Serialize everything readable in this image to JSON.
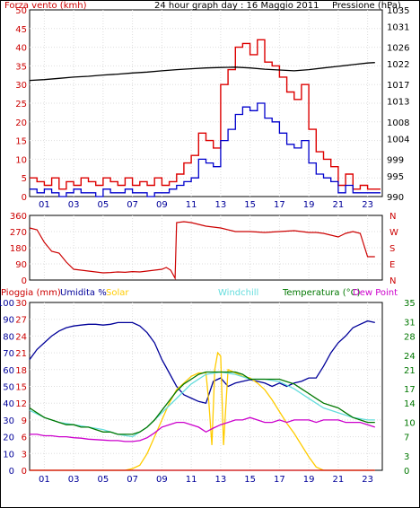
{
  "chart_data": [
    {
      "type": "line",
      "panel": "wind-pressure",
      "title": "24 hour graph day : 16 Maggio 2011",
      "left_label": "Forza vento (kmh)",
      "right_label": "Pressione (hPa)",
      "x_tick_labels": [
        "01",
        "03",
        "05",
        "07",
        "09",
        "11",
        "13",
        "15",
        "17",
        "19",
        "21",
        "23"
      ],
      "x_range": [
        0,
        24
      ],
      "left_axis": {
        "min": 0,
        "max": 50,
        "ticks": [
          0,
          5,
          10,
          15,
          20,
          25,
          30,
          35,
          40,
          45,
          50
        ]
      },
      "right_axis": {
        "min": 990,
        "max": 1035,
        "ticks": [
          990,
          995,
          999,
          1004,
          1008,
          1013,
          1017,
          1022,
          1026,
          1031,
          1035
        ]
      },
      "series": [
        {
          "name": "",
          "color": "#dd0000",
          "axis": "left",
          "x": [
            0,
            0.5,
            1,
            1.5,
            2,
            2.5,
            3,
            3.5,
            4,
            4.5,
            5,
            5.5,
            6,
            6.5,
            7,
            7.5,
            8,
            8.5,
            9,
            9.5,
            10,
            10.5,
            11,
            11.5,
            12,
            12.5,
            13,
            13.5,
            14,
            14.5,
            15,
            15.5,
            16,
            16.5,
            17,
            17.5,
            18,
            18.5,
            19,
            19.5,
            20,
            20.5,
            21,
            21.5,
            22,
            22.5,
            23,
            23.5
          ],
          "values": [
            5,
            4,
            3,
            5,
            2,
            4,
            3,
            5,
            4,
            3,
            5,
            4,
            3,
            5,
            3,
            4,
            3,
            5,
            3,
            4,
            6,
            9,
            11,
            17,
            15,
            13,
            30,
            34,
            40,
            41,
            38,
            42,
            36,
            35,
            32,
            28,
            26,
            30,
            18,
            12,
            10,
            8,
            3,
            6,
            2,
            3,
            2,
            2
          ]
        },
        {
          "name": "",
          "color": "#0000cc",
          "axis": "left",
          "x": [
            0,
            0.5,
            1,
            1.5,
            2,
            2.5,
            3,
            3.5,
            4,
            4.5,
            5,
            5.5,
            6,
            6.5,
            7,
            7.5,
            8,
            8.5,
            9,
            9.5,
            10,
            10.5,
            11,
            11.5,
            12,
            12.5,
            13,
            13.5,
            14,
            14.5,
            15,
            15.5,
            16,
            16.5,
            17,
            17.5,
            18,
            18.5,
            19,
            19.5,
            20,
            20.5,
            21,
            21.5,
            22,
            22.5,
            23,
            23.5
          ],
          "values": [
            2,
            1,
            2,
            1,
            0,
            1,
            2,
            1,
            1,
            0,
            2,
            1,
            1,
            2,
            1,
            1,
            0,
            1,
            1,
            2,
            3,
            4,
            5,
            10,
            9,
            8,
            15,
            18,
            22,
            24,
            23,
            25,
            21,
            20,
            17,
            14,
            13,
            15,
            9,
            6,
            5,
            4,
            1,
            3,
            1,
            1,
            1,
            1
          ]
        },
        {
          "name": "",
          "color": "#000000",
          "axis": "right",
          "x": [
            0,
            1,
            2,
            3,
            4,
            5,
            6,
            7,
            8,
            9,
            10,
            11,
            12,
            13,
            14,
            15,
            16,
            17,
            18,
            19,
            20,
            21,
            22,
            23,
            23.5
          ],
          "values": [
            1018,
            1018.2,
            1018.5,
            1018.8,
            1019,
            1019.3,
            1019.5,
            1019.8,
            1020,
            1020.3,
            1020.6,
            1020.8,
            1021,
            1021.1,
            1021.2,
            1021,
            1020.7,
            1020.5,
            1020.3,
            1020.6,
            1021,
            1021.4,
            1021.8,
            1022.2,
            1022.3
          ]
        }
      ]
    },
    {
      "type": "line",
      "panel": "wind-direction",
      "left_axis": {
        "min": 0,
        "max": 360,
        "ticks": [
          0,
          90,
          180,
          270,
          360
        ]
      },
      "right_tick_labels": [
        "N",
        "W",
        "S",
        "E",
        "N"
      ],
      "x_range": [
        0,
        24
      ],
      "series": [
        {
          "name": "",
          "color": "#cc0000",
          "x": [
            0,
            0.5,
            1,
            1.5,
            2,
            2.5,
            3,
            3.5,
            4,
            4.5,
            5,
            5.5,
            6,
            6.5,
            7,
            7.5,
            8,
            8.5,
            9,
            9.3,
            9.6,
            9.9,
            10,
            10.5,
            11,
            12,
            13,
            14,
            15,
            16,
            17,
            18,
            19,
            19.5,
            20,
            20.5,
            21,
            21.5,
            22,
            22.5,
            23,
            23.5
          ],
          "values": [
            290,
            280,
            210,
            160,
            150,
            100,
            60,
            55,
            50,
            45,
            40,
            42,
            45,
            43,
            47,
            45,
            50,
            55,
            60,
            70,
            55,
            10,
            320,
            325,
            320,
            300,
            290,
            270,
            270,
            265,
            270,
            275,
            265,
            265,
            260,
            250,
            240,
            260,
            270,
            260,
            130,
            130
          ]
        }
      ]
    },
    {
      "type": "line",
      "panel": "rain-humidity-temperature",
      "header_labels": {
        "rain": "Pioggia (mm)",
        "humidity": "Umidita %",
        "solar": "Solar",
        "windchill": "Windchill",
        "temperature": "Temperatura (°C)",
        "dewpoint": "Dew Point"
      },
      "colors": {
        "rain": "#cc0000",
        "humidity": "#000099",
        "solar": "#ffcc00",
        "windchill": "#66dddd",
        "temperature": "#007700",
        "dewpoint": "#cc00cc"
      },
      "x_range": [
        0,
        24
      ],
      "left_axis_rain": {
        "min": 0,
        "max": 30,
        "ticks": [
          0,
          3,
          6,
          9,
          12,
          15,
          18,
          21,
          24,
          27,
          30
        ]
      },
      "left_axis_humidity": {
        "min": 0,
        "max": 100,
        "ticks": [
          0,
          10,
          20,
          30,
          40,
          50,
          60,
          70,
          80,
          90,
          100
        ]
      },
      "right_axis_temperature": {
        "min": 0,
        "max": 35,
        "ticks": [
          0,
          3,
          7,
          10,
          14,
          17,
          21,
          24,
          28,
          31,
          35
        ]
      },
      "series": [
        {
          "name": "Umidita %",
          "key": "humidity",
          "color": "#000099",
          "x": [
            0,
            0.5,
            1,
            1.5,
            2,
            2.5,
            3,
            3.5,
            4,
            4.5,
            5,
            5.5,
            6,
            6.5,
            7,
            7.5,
            8,
            8.5,
            9,
            9.5,
            10,
            10.5,
            11,
            11.5,
            12,
            12.5,
            13,
            13.5,
            14,
            14.5,
            15,
            15.5,
            16,
            16.5,
            17,
            17.5,
            18,
            18.5,
            19,
            19.5,
            20,
            20.5,
            21,
            21.5,
            22,
            22.5,
            23,
            23.5
          ],
          "values": [
            66,
            72,
            76,
            80,
            83,
            85,
            86,
            86.5,
            87,
            87,
            86.5,
            87,
            88,
            88,
            88,
            86,
            82,
            76,
            66,
            58,
            50,
            45,
            43,
            41,
            40,
            53,
            55,
            50,
            52,
            53,
            54,
            53,
            52,
            50,
            52,
            50,
            52,
            53,
            55,
            55,
            62,
            70,
            76,
            80,
            85,
            87,
            89,
            88
          ]
        },
        {
          "name": "Solar",
          "key": "solar",
          "color": "#ffcc00",
          "x": [
            0,
            4,
            5,
            6,
            6.5,
            7,
            7.5,
            8,
            8.5,
            9,
            9.5,
            10,
            10.5,
            11,
            11.5,
            12,
            12.2,
            12.4,
            12.6,
            12.8,
            13,
            13.2,
            13.5,
            14,
            14.5,
            15,
            15.5,
            16,
            16.5,
            17,
            17.5,
            18,
            18.5,
            19,
            19.5,
            20,
            21,
            22,
            23.5
          ],
          "values": [
            0,
            0,
            0,
            0,
            0,
            1,
            3,
            10,
            20,
            30,
            40,
            48,
            52,
            56,
            58,
            58,
            40,
            15,
            60,
            70,
            68,
            15,
            60,
            58,
            56,
            55,
            52,
            48,
            42,
            35,
            28,
            22,
            15,
            8,
            2,
            0,
            0,
            0,
            0
          ]
        },
        {
          "name": "Windchill",
          "key": "windchill",
          "color": "#66dddd",
          "x": [
            0,
            1,
            2,
            3,
            4,
            5,
            6,
            7,
            8,
            9,
            10,
            11,
            12,
            13,
            14,
            15,
            16,
            17,
            18,
            19,
            20,
            21,
            22,
            23,
            23.5
          ],
          "values": [
            12.5,
            11,
            10,
            9.5,
            9,
            8.5,
            7.5,
            7,
            9,
            12,
            15,
            18,
            20,
            20.5,
            20,
            19,
            19,
            18.5,
            17,
            15,
            13,
            12,
            11,
            10.5,
            10.5
          ]
        },
        {
          "name": "Temperatura (°C)",
          "key": "temperature",
          "color": "#007700",
          "x": [
            0,
            0.5,
            1,
            1.5,
            2,
            2.5,
            3,
            3.5,
            4,
            4.5,
            5,
            5.5,
            6,
            6.5,
            7,
            7.5,
            8,
            8.5,
            9,
            9.5,
            10,
            10.5,
            11,
            11.5,
            12,
            12.5,
            13,
            13.5,
            14,
            14.5,
            15,
            15.5,
            16,
            16.5,
            17,
            17.5,
            18,
            18.5,
            19,
            19.5,
            20,
            20.5,
            21,
            21.5,
            22,
            22.5,
            23,
            23.5
          ],
          "values": [
            13,
            12,
            11,
            10.5,
            10,
            9.5,
            9.5,
            9,
            9,
            8.5,
            8,
            8,
            7.5,
            7.5,
            7.5,
            8,
            9,
            10.5,
            12.5,
            14.5,
            16.5,
            18,
            19,
            20,
            20.5,
            20.5,
            20.5,
            20.5,
            20.5,
            20,
            19,
            19,
            19,
            19,
            19,
            18.5,
            18,
            17,
            16,
            15,
            14,
            13.5,
            13,
            12,
            11,
            10.5,
            10,
            10
          ]
        },
        {
          "name": "Dew Point",
          "key": "dewpoint",
          "color": "#cc00cc",
          "x": [
            0,
            0.5,
            1,
            1.5,
            2,
            2.5,
            3,
            3.5,
            4,
            4.5,
            5,
            5.5,
            6,
            6.5,
            7,
            7.5,
            8,
            8.5,
            9,
            9.5,
            10,
            10.5,
            11,
            11.5,
            12,
            12.5,
            13,
            13.5,
            14,
            14.5,
            15,
            15.5,
            16,
            16.5,
            17,
            17.5,
            18,
            18.5,
            19,
            19.5,
            20,
            20.5,
            21,
            21.5,
            22,
            22.5,
            23,
            23.5
          ],
          "values": [
            7.5,
            7.5,
            7.2,
            7.2,
            7,
            7,
            6.8,
            6.7,
            6.5,
            6.4,
            6.3,
            6.2,
            6.2,
            6,
            6,
            6.2,
            6.8,
            7.8,
            9,
            9.5,
            10,
            10,
            9.5,
            9,
            8,
            8.8,
            9.5,
            10,
            10.5,
            10.5,
            11,
            10.5,
            10,
            10,
            10.5,
            10,
            10.5,
            10.5,
            10.5,
            10,
            10.5,
            10.5,
            10.5,
            10,
            10,
            10,
            9.5,
            9
          ]
        },
        {
          "name": "Pioggia (mm)",
          "key": "rain",
          "color": "#cc0000",
          "axis": "rain",
          "x": [
            0,
            23.5
          ],
          "values": [
            0,
            0
          ]
        }
      ]
    }
  ]
}
